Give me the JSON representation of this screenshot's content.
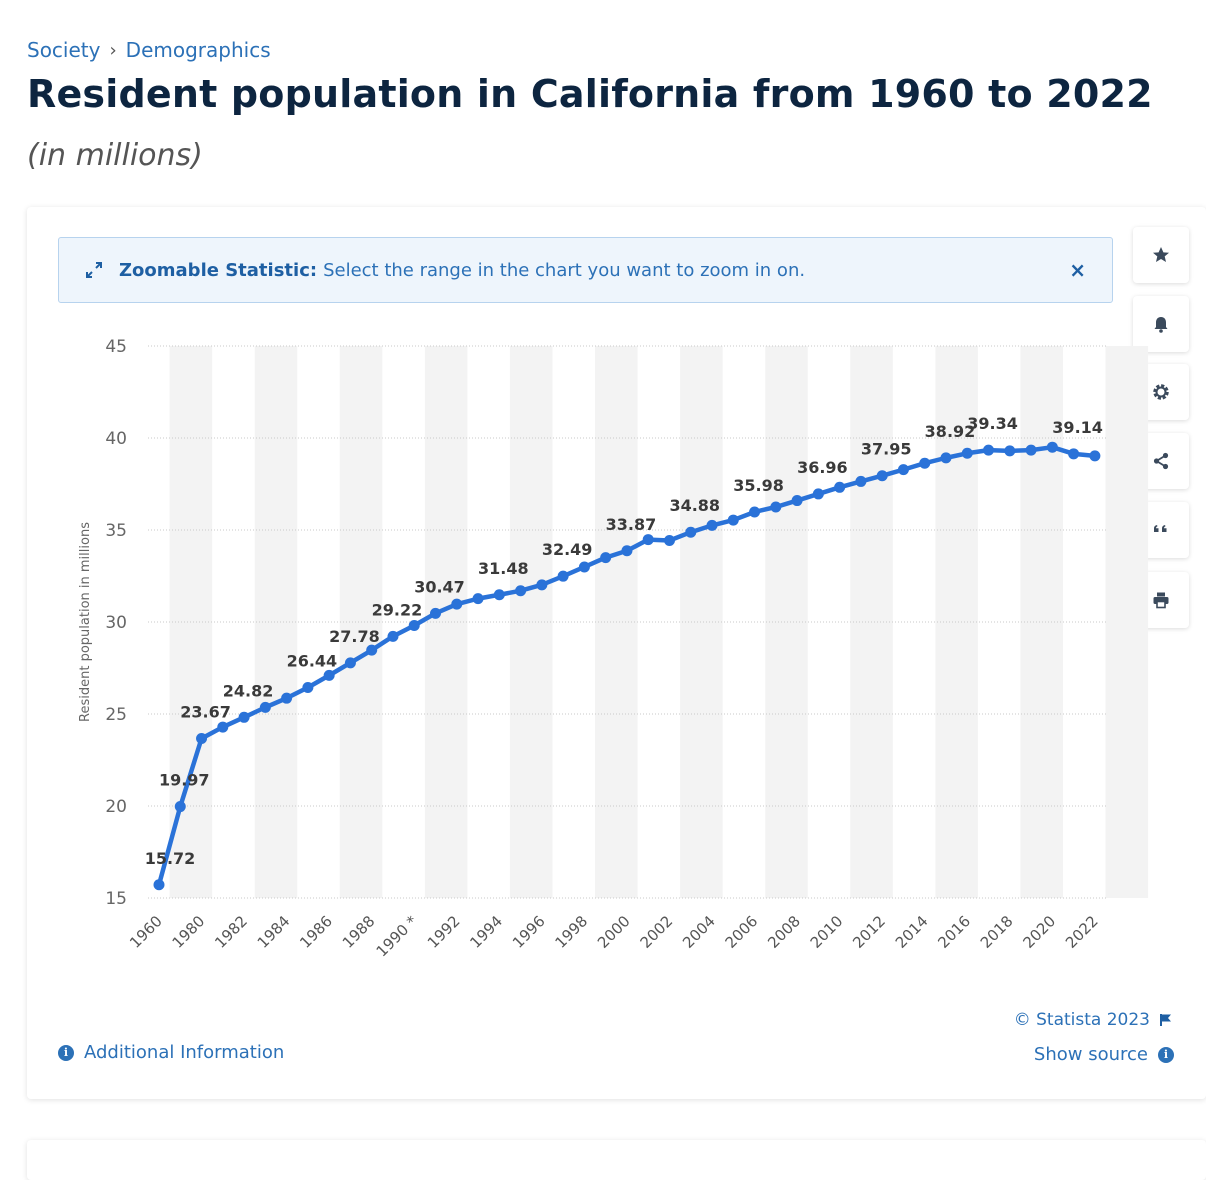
{
  "breadcrumb": {
    "items": [
      "Society",
      "Demographics"
    ],
    "separator": "›"
  },
  "title": "Resident population in California from 1960 to 2022",
  "subtitle": "(in millions)",
  "zoom_banner": {
    "label": "Zoomable Statistic:",
    "text": "Select the range in the chart you want to zoom in on.",
    "close": "×"
  },
  "toolbar": [
    "star-icon",
    "bell-icon",
    "gear-icon",
    "share-icon",
    "quote-icon",
    "print-icon"
  ],
  "footer": {
    "additional_info": "Additional Information",
    "copyright": "© Statista 2023",
    "show_source": "Show source",
    "info_glyph": "i"
  },
  "colors": {
    "line": "#2a72d8",
    "accent": "#2c71b7",
    "title": "#0d2540",
    "band": "#f3f3f3"
  },
  "chart_data": {
    "type": "line",
    "title": "Resident population in California from 1960 to 2022",
    "ylabel": "Resident population in millions",
    "xlabel": "",
    "ylim": [
      15,
      45
    ],
    "yticks": [
      15,
      20,
      25,
      30,
      35,
      40,
      45
    ],
    "x": [
      "1960",
      "1970",
      "1980",
      "1981",
      "1982",
      "1983",
      "1984",
      "1985",
      "1986",
      "1987",
      "1988",
      "1989",
      "1990 *",
      "1991",
      "1992",
      "1993",
      "1994",
      "1995",
      "1996",
      "1997",
      "1998",
      "1999",
      "2000",
      "2001",
      "2002",
      "2003",
      "2004",
      "2005",
      "2006",
      "2007",
      "2008",
      "2009",
      "2010",
      "2011",
      "2012",
      "2013",
      "2014",
      "2015",
      "2016",
      "2017",
      "2018",
      "2019",
      "2020",
      "2021",
      "2022"
    ],
    "values": [
      15.72,
      19.97,
      23.67,
      24.29,
      24.82,
      25.36,
      25.86,
      26.44,
      27.1,
      27.78,
      28.47,
      29.22,
      29.81,
      30.47,
      30.97,
      31.27,
      31.48,
      31.7,
      32.02,
      32.49,
      32.99,
      33.5,
      33.87,
      34.48,
      34.43,
      34.88,
      35.25,
      35.54,
      35.98,
      36.25,
      36.6,
      36.96,
      37.32,
      37.64,
      37.95,
      38.28,
      38.63,
      38.92,
      39.17,
      39.34,
      39.3,
      39.34,
      39.5,
      39.14,
      39.03
    ],
    "data_labels": {
      "1960": "15.72",
      "1970": "19.97",
      "1980": "23.67",
      "1982": "24.82",
      "1985": "26.44",
      "1987": "27.78",
      "1989": "29.22",
      "1991": "30.47",
      "1994": "31.48",
      "1997": "32.49",
      "2000": "33.87",
      "2003": "34.88",
      "2006": "35.98",
      "2009": "36.96",
      "2012": "37.95",
      "2015": "38.92",
      "2017": "39.34",
      "2021": "39.14"
    },
    "x_tick_labels": [
      "1960",
      "1980",
      "1982",
      "1984",
      "1986",
      "1988",
      "1990 *",
      "1992",
      "1994",
      "1996",
      "1998",
      "2000",
      "2002",
      "2004",
      "2006",
      "2008",
      "2010",
      "2012",
      "2014",
      "2016",
      "2018",
      "2020",
      "2022"
    ],
    "grid": true,
    "legend": "none"
  }
}
